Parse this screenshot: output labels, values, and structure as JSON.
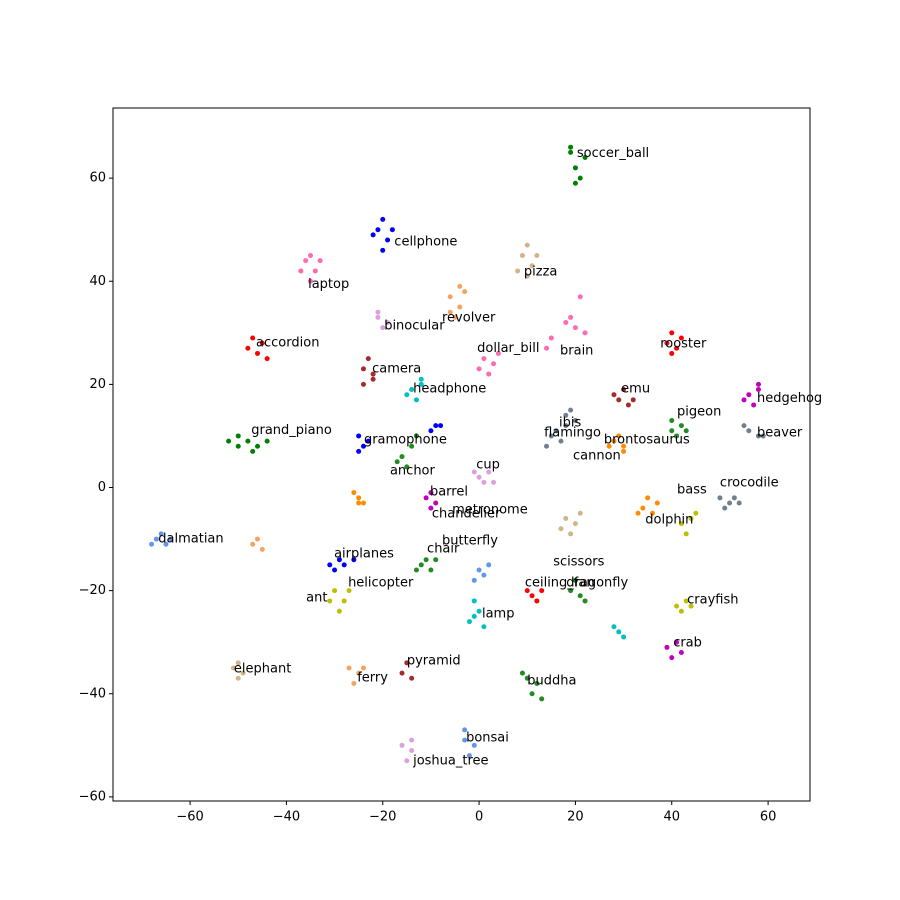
{
  "chart_data": {
    "type": "scatter",
    "xlim": [
      -76,
      68.7
    ],
    "ylim": [
      -60.8,
      73.6
    ],
    "xticks": [
      {
        "value": -60,
        "label": "−60"
      },
      {
        "value": -40,
        "label": "−40"
      },
      {
        "value": -20,
        "label": "−20"
      },
      0,
      20,
      40,
      60
    ],
    "yticks": [
      {
        "value": -60,
        "label": "−60"
      },
      {
        "value": -40,
        "label": "−40"
      },
      {
        "value": -20,
        "label": "−20"
      },
      0,
      20,
      40,
      60
    ],
    "series": [
      {
        "color": "green",
        "x": [
          19,
          20,
          21,
          20,
          19,
          22
        ],
        "values": [
          65,
          62,
          60,
          59,
          66,
          64
        ]
      },
      {
        "color": "blue",
        "x": [
          -21,
          -19,
          -20,
          -22,
          -18,
          -20
        ],
        "values": [
          50,
          48,
          46,
          49,
          50,
          52
        ]
      },
      {
        "color": "tan",
        "x": [
          9,
          11,
          10,
          8,
          12,
          10
        ],
        "values": [
          45,
          43,
          47,
          42,
          45,
          41
        ]
      },
      {
        "color": "hotpink",
        "x": [
          -36,
          -34,
          -35,
          -37,
          -33,
          -35
        ],
        "values": [
          44,
          42,
          40,
          42,
          44,
          45
        ]
      },
      {
        "color": "sandybrown",
        "x": [
          -6,
          -4,
          -5,
          -3,
          -6,
          -4
        ],
        "values": [
          37,
          35,
          33,
          38,
          34,
          39
        ]
      },
      {
        "color": "plum",
        "x": [
          -21,
          -19,
          -20,
          -21
        ],
        "values": [
          33,
          32,
          31,
          34
        ]
      },
      {
        "color": "hotpink",
        "x": [
          20,
          22,
          19,
          21,
          15,
          14,
          18
        ],
        "values": [
          31,
          30,
          33,
          37,
          29,
          27,
          32
        ]
      },
      {
        "color": "red",
        "x": [
          -48,
          -46,
          -45,
          -47,
          -44
        ],
        "values": [
          27,
          26,
          28,
          29,
          25
        ]
      },
      {
        "color": "hotpink",
        "x": [
          1,
          3,
          2,
          0,
          4
        ],
        "values": [
          25,
          24,
          22,
          23,
          26
        ]
      },
      {
        "color": "red",
        "x": [
          39,
          41,
          40,
          42,
          40
        ],
        "values": [
          28,
          27,
          30,
          29,
          26
        ]
      },
      {
        "color": "brown",
        "x": [
          -24,
          -22,
          -23,
          -24,
          -22
        ],
        "values": [
          23,
          21,
          25,
          20,
          22
        ]
      },
      {
        "color": "#00bfbf",
        "x": [
          -14,
          -12,
          -13,
          -15,
          -12
        ],
        "values": [
          19,
          20,
          17,
          18,
          21
        ]
      },
      {
        "color": "brown",
        "x": [
          29,
          31,
          30,
          28,
          32
        ],
        "values": [
          17,
          16,
          19,
          18,
          17
        ]
      },
      {
        "color": "#bf00bf",
        "x": [
          56,
          58,
          57,
          55,
          58
        ],
        "values": [
          18,
          19,
          16,
          17,
          20
        ]
      },
      {
        "color": "forestgreen",
        "x": [
          40,
          42,
          41,
          43,
          40
        ],
        "values": [
          11,
          12,
          10,
          11,
          13
        ]
      },
      {
        "color": "slategray",
        "x": [
          18,
          20,
          19,
          18,
          15,
          17,
          16,
          14
        ],
        "values": [
          14,
          13,
          15,
          12,
          10,
          9,
          11,
          8
        ]
      },
      {
        "color": "green",
        "x": [
          -52,
          -50,
          -48,
          -46,
          -44,
          -50,
          -47
        ],
        "values": [
          9,
          8,
          9,
          8,
          9,
          10,
          7
        ]
      },
      {
        "color": "blue",
        "x": [
          -25,
          -24,
          -23,
          -25,
          -9,
          -10,
          -8
        ],
        "values": [
          10,
          8,
          9,
          7,
          12,
          11,
          12
        ]
      },
      {
        "color": "darkorange",
        "x": [
          28,
          30,
          29,
          27,
          30
        ],
        "values": [
          9,
          8,
          10,
          8,
          7
        ]
      },
      {
        "color": "slategray",
        "x": [
          56,
          58,
          55,
          59
        ],
        "values": [
          11,
          10,
          12,
          10
        ]
      },
      {
        "color": "forestgreen",
        "x": [
          -16,
          -15,
          -14,
          -13,
          -17
        ],
        "values": [
          6,
          4,
          8,
          10,
          5
        ]
      },
      {
        "color": "plum",
        "x": [
          0,
          2,
          1,
          -1,
          3
        ],
        "values": [
          2,
          3,
          1,
          3,
          1
        ]
      },
      {
        "color": "slategray",
        "x": [
          50,
          52,
          54,
          51,
          53
        ],
        "values": [
          -2,
          -3,
          -3,
          -4,
          -2
        ]
      },
      {
        "color": "#bfbf00",
        "x": [
          42,
          44,
          43,
          45
        ],
        "values": [
          -7,
          -6,
          -9,
          -5
        ]
      },
      {
        "color": "#bf00bf",
        "x": [
          -11,
          -10,
          -9,
          -10
        ],
        "values": [
          -2,
          -1,
          -3,
          -4
        ]
      },
      {
        "color": "darkorange",
        "x": [
          -25,
          -24,
          -26,
          -25
        ],
        "values": [
          -2,
          -3,
          -1,
          -3
        ]
      },
      {
        "color": "darkorange",
        "x": [
          34,
          36,
          35,
          33,
          37
        ],
        "values": [
          -4,
          -5,
          -2,
          -5,
          -3
        ]
      },
      {
        "color": "tan",
        "x": [
          18,
          20,
          19,
          21,
          17
        ],
        "values": [
          -6,
          -7,
          -9,
          -5,
          -8
        ]
      },
      {
        "color": "cornflowerblue",
        "x": [
          -67,
          -65,
          -66,
          -64,
          -68
        ],
        "values": [
          -10,
          -11,
          -9,
          -10,
          -11
        ]
      },
      {
        "color": "sandybrown",
        "x": [
          -47,
          -46,
          -45
        ],
        "values": [
          -11,
          -10,
          -12
        ]
      },
      {
        "color": "forestgreen",
        "x": [
          -12,
          -10,
          -11,
          -13,
          -9
        ],
        "values": [
          -15,
          -16,
          -14,
          -16,
          -14
        ]
      },
      {
        "color": "blue",
        "x": [
          -31,
          -29,
          -30,
          -28,
          -26
        ],
        "values": [
          -15,
          -14,
          -16,
          -15,
          -14
        ]
      },
      {
        "color": "#00bfbf",
        "x": [
          -1,
          0,
          -2,
          1,
          -1
        ],
        "values": [
          -22,
          -24,
          -26,
          -27,
          -25
        ]
      },
      {
        "color": "cornflowerblue",
        "x": [
          0,
          2,
          1,
          -1
        ],
        "values": [
          -16,
          -15,
          -17,
          -18
        ]
      },
      {
        "color": "#bfbf00",
        "x": [
          -30,
          -28,
          -29,
          -27,
          -31
        ],
        "values": [
          -20,
          -22,
          -24,
          -20,
          -22
        ]
      },
      {
        "color": "red",
        "x": [
          11,
          13,
          12,
          10
        ],
        "values": [
          -21,
          -20,
          -22,
          -20
        ]
      },
      {
        "color": "forestgreen",
        "x": [
          19,
          21,
          20,
          22
        ],
        "values": [
          -20,
          -21,
          -18,
          -22
        ]
      },
      {
        "color": "#bfbf00",
        "x": [
          41,
          43,
          42,
          44
        ],
        "values": [
          -23,
          -22,
          -24,
          -23
        ]
      },
      {
        "color": "#00bfbf",
        "x": [
          29,
          30,
          28
        ],
        "values": [
          -28,
          -29,
          -27
        ]
      },
      {
        "color": "#bf00bf",
        "x": [
          39,
          41,
          40,
          42
        ],
        "values": [
          -31,
          -30,
          -33,
          -32
        ]
      },
      {
        "color": "brown",
        "x": [
          -15,
          -16,
          -14
        ],
        "values": [
          -34,
          -36,
          -37
        ]
      },
      {
        "color": "tan",
        "x": [
          -51,
          -50,
          -49,
          -50
        ],
        "values": [
          -35,
          -34,
          -36,
          -37
        ]
      },
      {
        "color": "sandybrown",
        "x": [
          -27,
          -25,
          -26,
          -24
        ],
        "values": [
          -35,
          -36,
          -38,
          -35
        ]
      },
      {
        "color": "forestgreen",
        "x": [
          10,
          12,
          11,
          13,
          9
        ],
        "values": [
          -37,
          -38,
          -40,
          -41,
          -36
        ]
      },
      {
        "color": "cornflowerblue",
        "x": [
          -3,
          -1,
          -2,
          -3
        ],
        "values": [
          -49,
          -50,
          -52,
          -47
        ]
      },
      {
        "color": "plum",
        "x": [
          -16,
          -14,
          -15,
          -14
        ],
        "values": [
          -50,
          -51,
          -53,
          -49
        ]
      }
    ],
    "annotations": [
      {
        "text": "soccer_ball",
        "x": 20.3,
        "y": 64.8
      },
      {
        "text": "cellphone",
        "x": -17.6,
        "y": 47.6
      },
      {
        "text": "pizza",
        "x": 9.3,
        "y": 41.8
      },
      {
        "text": "laptop",
        "x": -35.5,
        "y": 39.4
      },
      {
        "text": "revolver",
        "x": -7.7,
        "y": 32.9
      },
      {
        "text": "binocular",
        "x": -19.7,
        "y": 31.3
      },
      {
        "text": "brain",
        "x": 16.8,
        "y": 26.5
      },
      {
        "text": "accordion",
        "x": -46.3,
        "y": 28.0
      },
      {
        "text": "dollar_bill",
        "x": -0.4,
        "y": 27.0
      },
      {
        "text": "rooster",
        "x": 37.6,
        "y": 27.8
      },
      {
        "text": "camera",
        "x": -22.2,
        "y": 23.0
      },
      {
        "text": "headphone",
        "x": -13.7,
        "y": 19.1
      },
      {
        "text": "emu",
        "x": 29.5,
        "y": 19.1
      },
      {
        "text": "hedgehog",
        "x": 57.7,
        "y": 17.3
      },
      {
        "text": "pigeon",
        "x": 41.1,
        "y": 14.6
      },
      {
        "text": "ibis",
        "x": 16.6,
        "y": 12.5
      },
      {
        "text": "flamingo",
        "x": 13.5,
        "y": 10.6
      },
      {
        "text": "grand_piano",
        "x": -47.3,
        "y": 11.1
      },
      {
        "text": "gramophone",
        "x": -23.9,
        "y": 9.2
      },
      {
        "text": "brontosaurus",
        "x": 25.9,
        "y": 9.2
      },
      {
        "text": "beaver",
        "x": 57.7,
        "y": 10.6
      },
      {
        "text": "cannon",
        "x": 19.5,
        "y": 6.1
      },
      {
        "text": "anchor",
        "x": -18.5,
        "y": 3.2
      },
      {
        "text": "cup",
        "x": -0.6,
        "y": 4.4
      },
      {
        "text": "crocodile",
        "x": 50.0,
        "y": 0.9
      },
      {
        "text": "bass",
        "x": 41.1,
        "y": -0.5
      },
      {
        "text": "barrel",
        "x": -10.2,
        "y": -0.9
      },
      {
        "text": "chandelier",
        "x": -9.8,
        "y": -5.1
      },
      {
        "text": "metronome",
        "x": -5.6,
        "y": -4.4
      },
      {
        "text": "dolphin",
        "x": 34.5,
        "y": -6.3
      },
      {
        "text": "dalmatian",
        "x": -66.6,
        "y": -10.0
      },
      {
        "text": "butterfly",
        "x": -7.7,
        "y": -10.4
      },
      {
        "text": "chair",
        "x": -10.8,
        "y": -11.9
      },
      {
        "text": "airplanes",
        "x": -30.1,
        "y": -12.9
      },
      {
        "text": "scissors",
        "x": 15.4,
        "y": -14.4
      },
      {
        "text": "helicopter",
        "x": -27.2,
        "y": -18.5
      },
      {
        "text": "ceiling_fan",
        "x": 9.5,
        "y": -18.5
      },
      {
        "text": "dragonfly",
        "x": 18.1,
        "y": -18.5
      },
      {
        "text": "ant",
        "x": -35.9,
        "y": -21.4
      },
      {
        "text": "crayfish",
        "x": 43.2,
        "y": -21.8
      },
      {
        "text": "lamp",
        "x": 0.6,
        "y": -24.5
      },
      {
        "text": "crab",
        "x": 40.3,
        "y": -30.2
      },
      {
        "text": "pyramid",
        "x": -15.0,
        "y": -33.6
      },
      {
        "text": "elephant",
        "x": -50.9,
        "y": -35.2
      },
      {
        "text": "ferry",
        "x": -25.3,
        "y": -36.9
      },
      {
        "text": "buddha",
        "x": 10.0,
        "y": -37.5
      },
      {
        "text": "bonsai",
        "x": -2.7,
        "y": -48.6
      },
      {
        "text": "joshua_tree",
        "x": -13.7,
        "y": -53.0
      }
    ]
  }
}
